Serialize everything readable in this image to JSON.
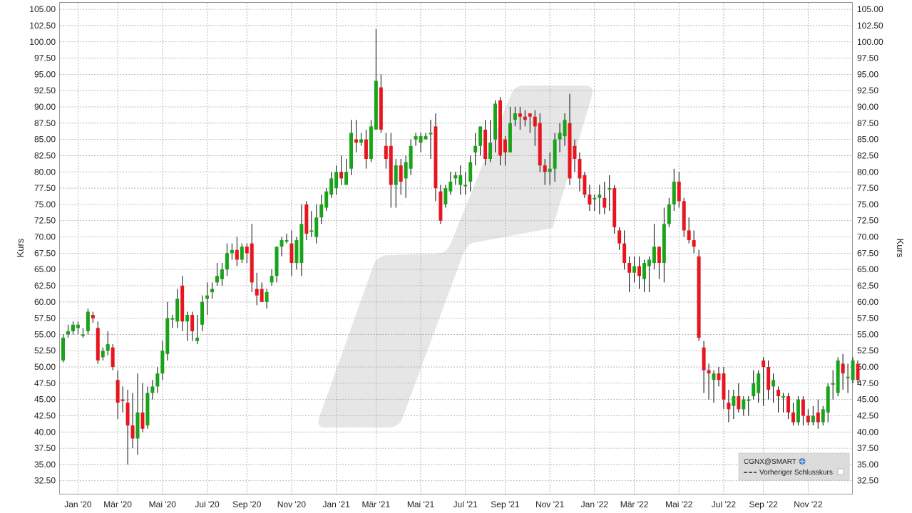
{
  "colors": {
    "up": "#19a319",
    "down": "#e8141e",
    "wick": "#111111",
    "grid": "#a9a9a9",
    "watermark": "#e6e6e6",
    "legend_bg": "#dcdcdc"
  },
  "legend": {
    "symbol": "CGNX@SMART",
    "globe_icon": "globe-icon",
    "prev_close_label": "Vorheriger Schlusskurs",
    "checkbox_icon": "checkbox-icon"
  },
  "chart_data": {
    "type": "candlestick",
    "ylabel_left": "Kurs",
    "ylabel_right": "Kurs",
    "ylim": [
      30.5,
      106
    ],
    "yticks": [
      32.5,
      35,
      37.5,
      40,
      42.5,
      45,
      47.5,
      50,
      52.5,
      55,
      57.5,
      60,
      62.5,
      65,
      67.5,
      70,
      72.5,
      75,
      77.5,
      80,
      82.5,
      85,
      87.5,
      90,
      92.5,
      95,
      97.5,
      100,
      102.5,
      105
    ],
    "ytick_labels": [
      "32.50",
      "35.00",
      "37.50",
      "40.00",
      "42.50",
      "45.00",
      "47.50",
      "50.00",
      "52.50",
      "55.00",
      "57.50",
      "60.00",
      "62.50",
      "65.00",
      "67.50",
      "70.00",
      "72.50",
      "75.00",
      "77.50",
      "80.00",
      "82.50",
      "85.00",
      "87.50",
      "90.00",
      "92.50",
      "95.00",
      "97.50",
      "100.00",
      "102.50",
      "105.00"
    ],
    "xtick_labels": [
      "Jan '20",
      "Mär '20",
      "Mai '20",
      "Jul '20",
      "Sep '20",
      "Nov '20",
      "Jan '21",
      "Mär '21",
      "Mai '21",
      "Jul '21",
      "Sep '21",
      "Nov '21",
      "Jan '22",
      "Mär '22",
      "Mai '22",
      "Jul '22",
      "Sep '22",
      "Nov '22"
    ],
    "xtick_index": [
      3,
      11,
      20,
      29,
      37,
      46,
      55,
      63,
      72,
      81,
      89,
      98,
      107,
      115,
      124,
      133,
      141,
      150
    ],
    "candles": [
      [
        51,
        54.5,
        55,
        50.7
      ],
      [
        55,
        55.5,
        56.5,
        54.5
      ],
      [
        55.5,
        56.5,
        57,
        55
      ],
      [
        56,
        56.5,
        57,
        55
      ],
      [
        55,
        55,
        56,
        54.5
      ],
      [
        55.5,
        58.5,
        59,
        55
      ],
      [
        58,
        57.5,
        58.5,
        56.8
      ],
      [
        56,
        51,
        57,
        50.5
      ],
      [
        51.5,
        52.5,
        53,
        51
      ],
      [
        52.5,
        53.5,
        55.5,
        51.8
      ],
      [
        53,
        50,
        53.5,
        49.5
      ],
      [
        48,
        44.5,
        49.5,
        42
      ],
      [
        45,
        44.8,
        47,
        43
      ],
      [
        44.5,
        41,
        46.5,
        35
      ],
      [
        41,
        39,
        46,
        37.5
      ],
      [
        39,
        43,
        49,
        36.5
      ],
      [
        43,
        40.5,
        47.5,
        40
      ],
      [
        41,
        46,
        47,
        40.5
      ],
      [
        46,
        47,
        48,
        45
      ],
      [
        47,
        49,
        50,
        46
      ],
      [
        49,
        52.5,
        54,
        48
      ],
      [
        52,
        57.5,
        60,
        51
      ],
      [
        57.5,
        57.5,
        58,
        56
      ],
      [
        57,
        60.5,
        62,
        56
      ],
      [
        62.5,
        57,
        64,
        55.5
      ],
      [
        57,
        58,
        58.5,
        54
      ],
      [
        58,
        55.5,
        58.5,
        54
      ],
      [
        54,
        54.5,
        58,
        53.5
      ],
      [
        56.5,
        60,
        61,
        55.5
      ],
      [
        60.5,
        61,
        63,
        58
      ],
      [
        61.5,
        62,
        63,
        60.5
      ],
      [
        63,
        64,
        66,
        62.5
      ],
      [
        63.5,
        65,
        66,
        62.5
      ],
      [
        65,
        67.5,
        69,
        64
      ],
      [
        67.5,
        68,
        69,
        66.5
      ],
      [
        68,
        66.5,
        70,
        65.5
      ],
      [
        66.5,
        68.5,
        69,
        66
      ],
      [
        68.5,
        67.5,
        69,
        66
      ],
      [
        69,
        63,
        72,
        61.5
      ],
      [
        62,
        61,
        64.5,
        59.5
      ],
      [
        62,
        60,
        63,
        60
      ],
      [
        60,
        61.5,
        62,
        59
      ],
      [
        63,
        64,
        65,
        62.5
      ],
      [
        64,
        68.5,
        68.5,
        63
      ],
      [
        68.5,
        69.5,
        70,
        67
      ],
      [
        69.5,
        69.5,
        70.5,
        69
      ],
      [
        69,
        66,
        71,
        64
      ],
      [
        66,
        69.5,
        70,
        65
      ],
      [
        66,
        72,
        75,
        64
      ],
      [
        75,
        70.5,
        75.5,
        69.5
      ],
      [
        71,
        71,
        74,
        70
      ],
      [
        70,
        73,
        75,
        69
      ],
      [
        73,
        75,
        76.5,
        72
      ],
      [
        74.5,
        77,
        77.5,
        74
      ],
      [
        76.5,
        79,
        80,
        76
      ],
      [
        77.5,
        80,
        81,
        76.5
      ],
      [
        80,
        79,
        82.5,
        78
      ],
      [
        78,
        80,
        82,
        78
      ],
      [
        80.5,
        86,
        88,
        79.5
      ],
      [
        85,
        84.5,
        88,
        83
      ],
      [
        84.5,
        85,
        86,
        84
      ],
      [
        85,
        82,
        86.5,
        80.5
      ],
      [
        82,
        87,
        88,
        81.5
      ],
      [
        86.5,
        94,
        102,
        86.5
      ],
      [
        93,
        86.5,
        95,
        86
      ],
      [
        84,
        82,
        86,
        80.5
      ],
      [
        84,
        78,
        86,
        74.5
      ],
      [
        78,
        81,
        82,
        74.5
      ],
      [
        81,
        78.5,
        82,
        76.5
      ],
      [
        79,
        81.5,
        82.5,
        76
      ],
      [
        80.5,
        84,
        85,
        79.5
      ],
      [
        85,
        85.5,
        86,
        84
      ],
      [
        84.5,
        85.5,
        86,
        83
      ],
      [
        85,
        85.5,
        86,
        85
      ],
      [
        86,
        86,
        88,
        82
      ],
      [
        87,
        77.5,
        89,
        75.5
      ],
      [
        77,
        72.5,
        78,
        72
      ],
      [
        75,
        77.5,
        78,
        74.5
      ],
      [
        77,
        78.5,
        80,
        76.5
      ],
      [
        79,
        79.5,
        80,
        78
      ],
      [
        78,
        79.5,
        81,
        76.5
      ],
      [
        78,
        78,
        80,
        76.5
      ],
      [
        78.5,
        81.5,
        82.5,
        77
      ],
      [
        83,
        84,
        86,
        81
      ],
      [
        84,
        87,
        87,
        82.5
      ],
      [
        86.5,
        82,
        88,
        81
      ],
      [
        82,
        84.5,
        88,
        81.5
      ],
      [
        85,
        90.5,
        91,
        83
      ],
      [
        91,
        82.5,
        91.5,
        81
      ],
      [
        85,
        83,
        85.5,
        81
      ],
      [
        83,
        87.5,
        90,
        83.5
      ],
      [
        88,
        89,
        90,
        87
      ],
      [
        89,
        88.5,
        90,
        86.5
      ],
      [
        88.5,
        88,
        89.5,
        87
      ],
      [
        89,
        88.5,
        88.5,
        86
      ],
      [
        88.5,
        87,
        89.5,
        84
      ],
      [
        87.5,
        81,
        89,
        80
      ],
      [
        81,
        80,
        82,
        78
      ],
      [
        80,
        80.5,
        83,
        78
      ],
      [
        80.5,
        85,
        86,
        78.5
      ],
      [
        85,
        86,
        87.5,
        83
      ],
      [
        85.5,
        88,
        89,
        84
      ],
      [
        87.5,
        79,
        92,
        78
      ],
      [
        84,
        82,
        85,
        80
      ],
      [
        82,
        79,
        83,
        77
      ],
      [
        79.5,
        76.5,
        80,
        76
      ],
      [
        76.5,
        75,
        78,
        74
      ],
      [
        76,
        76,
        76.5,
        74
      ],
      [
        76,
        76.5,
        78,
        73.5
      ],
      [
        76,
        74.5,
        78.5,
        73.5
      ],
      [
        77.5,
        77.5,
        79.5,
        74
      ],
      [
        77.5,
        71.5,
        78,
        70.5
      ],
      [
        71,
        69,
        71.5,
        68
      ],
      [
        69,
        66,
        71,
        65
      ],
      [
        66,
        64.5,
        67,
        61.5
      ],
      [
        64.5,
        65.5,
        67,
        63
      ],
      [
        65.5,
        64,
        67,
        62
      ],
      [
        63.5,
        66,
        66.5,
        61.5
      ],
      [
        65.5,
        66.5,
        67,
        61.5
      ],
      [
        66,
        68.5,
        72,
        65
      ],
      [
        68.5,
        66,
        68.5,
        63.5
      ],
      [
        66,
        72,
        74.5,
        63
      ],
      [
        72,
        75,
        76,
        71.5
      ],
      [
        75,
        78.5,
        80.5,
        74
      ],
      [
        78.5,
        75.5,
        80,
        74.5
      ],
      [
        75.5,
        71,
        76,
        70
      ],
      [
        71,
        69.5,
        73,
        69
      ],
      [
        69.5,
        68.5,
        71,
        67.5
      ],
      [
        67,
        54.5,
        68,
        54
      ],
      [
        53,
        49.5,
        54,
        46
      ],
      [
        49.5,
        49,
        50.5,
        45
      ],
      [
        48,
        49,
        49.5,
        44.5
      ],
      [
        49,
        48,
        50,
        47
      ],
      [
        49,
        45,
        50,
        43.5
      ],
      [
        44.5,
        43.5,
        46.5,
        41.5
      ],
      [
        44,
        45.5,
        46.5,
        42
      ],
      [
        45.5,
        43.5,
        47.5,
        43
      ],
      [
        43.5,
        45,
        45.5,
        42.5
      ],
      [
        45,
        45,
        45.5,
        42.5
      ],
      [
        45.5,
        47.5,
        49.5,
        45
      ],
      [
        46,
        49,
        49.5,
        44.5
      ],
      [
        51,
        50,
        51.5,
        44
      ],
      [
        50,
        46.5,
        51,
        45
      ],
      [
        47,
        48,
        49,
        44.5
      ],
      [
        46.5,
        45.5,
        47,
        43
      ],
      [
        45.5,
        45.5,
        46,
        43
      ],
      [
        45.5,
        43,
        46,
        42
      ],
      [
        43,
        41.5,
        44.5,
        41
      ],
      [
        41.5,
        45,
        45.5,
        41
      ],
      [
        45,
        42.5,
        45.5,
        41
      ],
      [
        42.5,
        41.5,
        43.5,
        41
      ],
      [
        41.5,
        42.5,
        44,
        41
      ],
      [
        43,
        41.5,
        45,
        40.5
      ],
      [
        41.5,
        43.5,
        44,
        41
      ],
      [
        43,
        47,
        47.5,
        41.5
      ],
      [
        47.5,
        47.5,
        49.5,
        45
      ],
      [
        46,
        51,
        51.5,
        45.5
      ],
      [
        50.5,
        49,
        52,
        46.5
      ],
      [
        48.5,
        48.5,
        50.5,
        46
      ],
      [
        48,
        51,
        51.5,
        47.5
      ],
      [
        50.5,
        48,
        51,
        47.5
      ]
    ]
  }
}
